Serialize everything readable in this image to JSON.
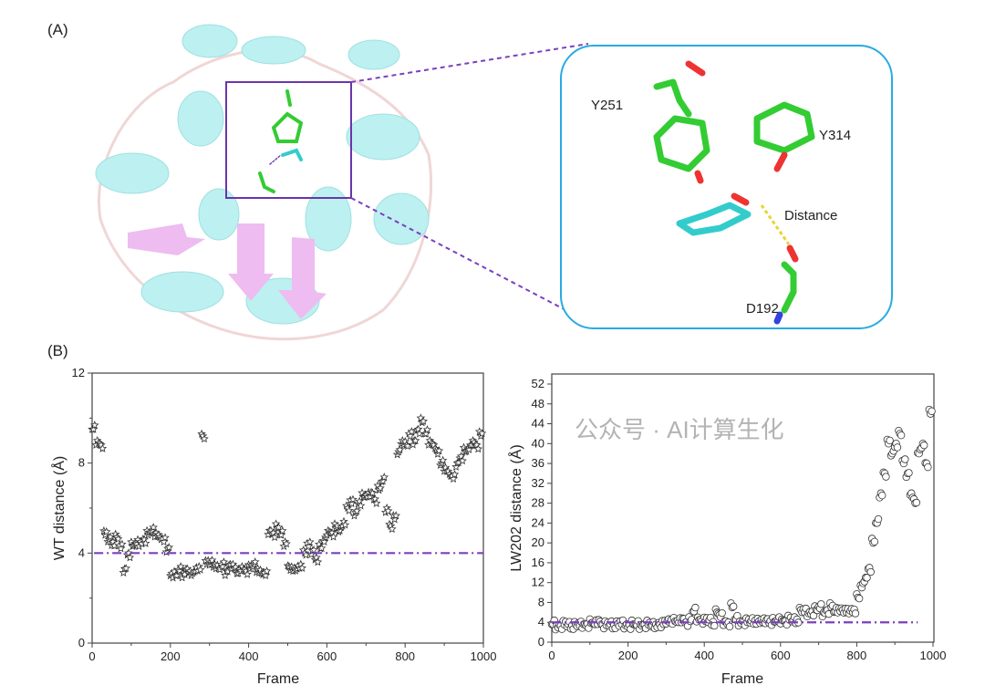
{
  "figure": {
    "panel_a_label": "(A)",
    "panel_b_label": "(B)",
    "inset_labels": [
      "Y251",
      "Y314",
      "Distance",
      "D192"
    ],
    "watermark": "公众号 · AI计算生化",
    "colors": {
      "threshold": "#7b3fbf",
      "inset_border": "#29abe2",
      "helix": "#8fe3e3",
      "sheet": "#e58fe8",
      "carbon": "#33cc33",
      "ligand": "#33cccc"
    }
  },
  "chart_data": [
    {
      "type": "scatter",
      "marker": "star",
      "xlabel": "Frame",
      "ylabel": "WT distance (Å)",
      "xlim": [
        0,
        1000
      ],
      "ylim": [
        0,
        12
      ],
      "xticks": [
        "0",
        "200",
        "400",
        "600",
        "800",
        "1000"
      ],
      "yticks": [
        "0",
        "4",
        "8",
        "12"
      ],
      "threshold": 4,
      "threshold_range": [
        5,
        1000
      ],
      "x_start": 0,
      "x_step": 10,
      "values": [
        9.5,
        9.0,
        8.8,
        4.8,
        4.6,
        4.5,
        4.7,
        4.2,
        3.3,
        4.0,
        4.3,
        4.4,
        4.5,
        4.6,
        4.8,
        5.0,
        4.9,
        4.7,
        4.5,
        4.2,
        3.1,
        3.0,
        3.2,
        3.1,
        3.3,
        3.0,
        3.2,
        3.4,
        9.2,
        3.5,
        3.6,
        3.5,
        3.3,
        3.4,
        3.2,
        3.5,
        3.3,
        3.1,
        3.4,
        3.2,
        3.3,
        3.5,
        3.3,
        3.1,
        3.0,
        5.0,
        4.9,
        5.1,
        4.8,
        4.5,
        3.4,
        3.2,
        3.3,
        3.5,
        4.0,
        4.3,
        4.1,
        3.8,
        4.2,
        4.5,
        5.0,
        4.9,
        5.1,
        5.0,
        5.4,
        6.0,
        6.2,
        5.8,
        6.3,
        6.5,
        6.5,
        6.7,
        6.4,
        6.8,
        7.2,
        6.0,
        5.2,
        5.5,
        8.5,
        9.0,
        8.8,
        9.2,
        9.0,
        9.5,
        9.8,
        9.3,
        9.0,
        8.8,
        8.4,
        8.0,
        7.8,
        7.5,
        7.3,
        8.0,
        8.3,
        8.5,
        8.6,
        9.0,
        8.8,
        9.2
      ]
    },
    {
      "type": "scatter",
      "marker": "circle",
      "xlabel": "Frame",
      "ylabel": "LW202 distance (Å)",
      "xlim": [
        0,
        1000
      ],
      "ylim": [
        0,
        52
      ],
      "xticks": [
        "0",
        "200",
        "400",
        "600",
        "800",
        "1000"
      ],
      "yticks": [
        "0",
        "4",
        "8",
        "12",
        "16",
        "20",
        "24",
        "28",
        "32",
        "36",
        "40",
        "44",
        "48",
        "52"
      ],
      "threshold": 4,
      "threshold_range": [
        0,
        960
      ],
      "x_start": 0,
      "x_step": 10,
      "values": [
        3.6,
        3.4,
        3.3,
        3.5,
        3.6,
        3.4,
        3.5,
        3.3,
        3.6,
        3.7,
        3.8,
        3.6,
        4.5,
        3.5,
        3.4,
        3.6,
        3.5,
        3.7,
        3.6,
        3.4,
        3.5,
        3.6,
        3.4,
        3.5,
        3.6,
        3.5,
        3.4,
        3.6,
        3.5,
        3.6,
        4.3,
        4.5,
        4.2,
        4.0,
        4.8,
        4.1,
        4.2,
        6.2,
        5.0,
        4.3,
        4.2,
        4.5,
        4.1,
        6.0,
        5.0,
        4.2,
        4.0,
        7.0,
        4.5,
        4.2,
        4.1,
        4.0,
        4.3,
        4.4,
        4.2,
        4.0,
        4.5,
        4.3,
        4.1,
        4.2,
        4.6,
        4.3,
        4.5,
        4.4,
        4.6,
        6.5,
        6.0,
        5.8,
        6.2,
        6.5,
        6.8,
        6.0,
        6.5,
        7.0,
        6.2,
        6.8,
        6.5,
        6.0,
        6.3,
        6.6,
        9.0,
        11.0,
        13.0,
        15.0,
        20.0,
        24.0,
        30.0,
        34.0,
        40.0,
        38.0,
        40.0,
        42.0,
        36.0,
        34.0,
        30.0,
        28.0,
        38.0,
        40.0,
        36.0,
        46.0
      ]
    }
  ]
}
